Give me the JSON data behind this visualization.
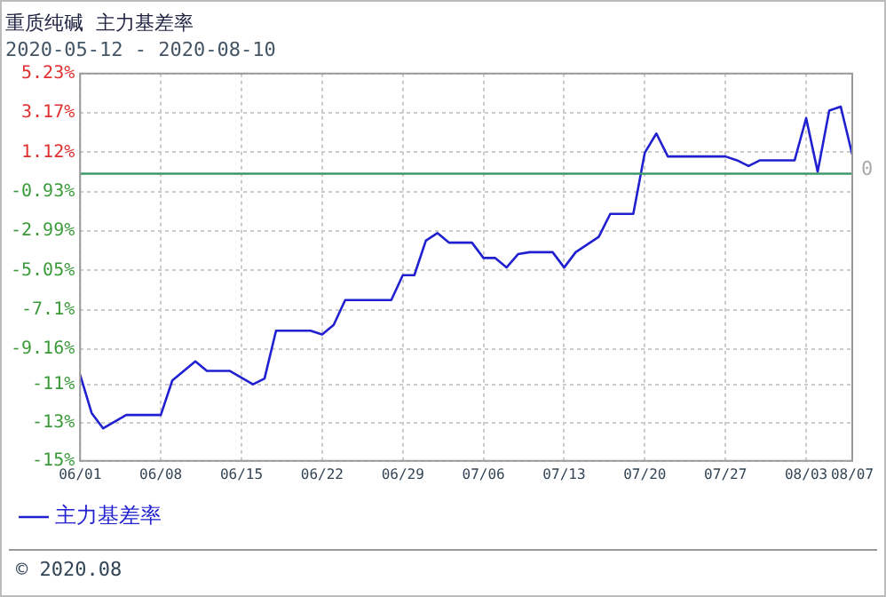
{
  "chart_data": {
    "type": "line",
    "title": "重质纯碱  主力基差率",
    "subtitle": "2020-05-12 - 2020-08-10",
    "x": [
      "2020-06-01",
      "2020-06-02",
      "2020-06-03",
      "2020-06-05",
      "2020-06-08",
      "2020-06-09",
      "2020-06-11",
      "2020-06-12",
      "2020-06-14",
      "2020-06-16",
      "2020-06-17",
      "2020-06-18",
      "2020-06-21",
      "2020-06-22",
      "2020-06-23",
      "2020-06-24",
      "2020-06-28",
      "2020-06-29",
      "2020-06-30",
      "2020-07-01",
      "2020-07-02",
      "2020-07-03",
      "2020-07-05",
      "2020-07-06",
      "2020-07-07",
      "2020-07-08",
      "2020-07-09",
      "2020-07-10",
      "2020-07-12",
      "2020-07-13",
      "2020-07-14",
      "2020-07-16",
      "2020-07-17",
      "2020-07-19",
      "2020-07-20",
      "2020-07-21",
      "2020-07-22",
      "2020-07-27",
      "2020-07-28",
      "2020-07-29",
      "2020-07-30",
      "2020-08-02",
      "2020-08-03",
      "2020-08-04",
      "2020-08-05",
      "2020-08-06",
      "2020-08-07"
    ],
    "series": [
      {
        "name": "主力基差率",
        "color": "#2020d0",
        "values": [
          -10.5,
          -12.5,
          -13.3,
          -12.6,
          -12.6,
          -10.8,
          -9.8,
          -10.3,
          -10.3,
          -11.0,
          -10.7,
          -8.2,
          -8.2,
          -8.4,
          -7.9,
          -6.6,
          -6.6,
          -5.3,
          -5.3,
          -3.5,
          -3.1,
          -3.6,
          -3.6,
          -4.4,
          -4.4,
          -4.9,
          -4.2,
          -4.1,
          -4.1,
          -4.9,
          -4.1,
          -3.3,
          -2.1,
          -2.1,
          1.1,
          2.1,
          0.9,
          0.9,
          0.7,
          0.4,
          0.7,
          0.7,
          2.9,
          0.1,
          3.3,
          3.5,
          1.0
        ]
      }
    ],
    "xlim": [
      "2020-06-01",
      "2020-08-07"
    ],
    "xticks": [
      {
        "value": "2020-06-01",
        "label": "06/01"
      },
      {
        "value": "2020-06-08",
        "label": "06/08"
      },
      {
        "value": "2020-06-15",
        "label": "06/15"
      },
      {
        "value": "2020-06-22",
        "label": "06/22"
      },
      {
        "value": "2020-06-29",
        "label": "06/29"
      },
      {
        "value": "2020-07-06",
        "label": "07/06"
      },
      {
        "value": "2020-07-13",
        "label": "07/13"
      },
      {
        "value": "2020-07-20",
        "label": "07/20"
      },
      {
        "value": "2020-07-27",
        "label": "07/27"
      },
      {
        "value": "2020-08-03",
        "label": "08/03"
      },
      {
        "value": "2020-08-07",
        "label": "08/07"
      }
    ],
    "ylim": [
      -15,
      5.23
    ],
    "yticks": [
      {
        "value": -15,
        "label": "-15%"
      },
      {
        "value": -13,
        "label": "-13%"
      },
      {
        "value": -11,
        "label": "-11%"
      },
      {
        "value": -9.16,
        "label": "-9.16%"
      },
      {
        "value": -7.1,
        "label": "-7.1%"
      },
      {
        "value": -5.05,
        "label": "-5.05%"
      },
      {
        "value": -2.99,
        "label": "-2.99%"
      },
      {
        "value": -0.93,
        "label": "-0.93%"
      },
      {
        "value": 1.12,
        "label": "1.12%"
      },
      {
        "value": 3.17,
        "label": "3.17%"
      },
      {
        "value": 5.23,
        "label": "5.23%"
      }
    ],
    "ref_lines": [
      {
        "axis": "y",
        "value": 0,
        "label": "0",
        "color": "#3c9a6a"
      }
    ],
    "annotations": [
      "© 2020.08"
    ],
    "grid": true,
    "legend": "bottom left",
    "marker": "none",
    "line_style": "solid"
  }
}
